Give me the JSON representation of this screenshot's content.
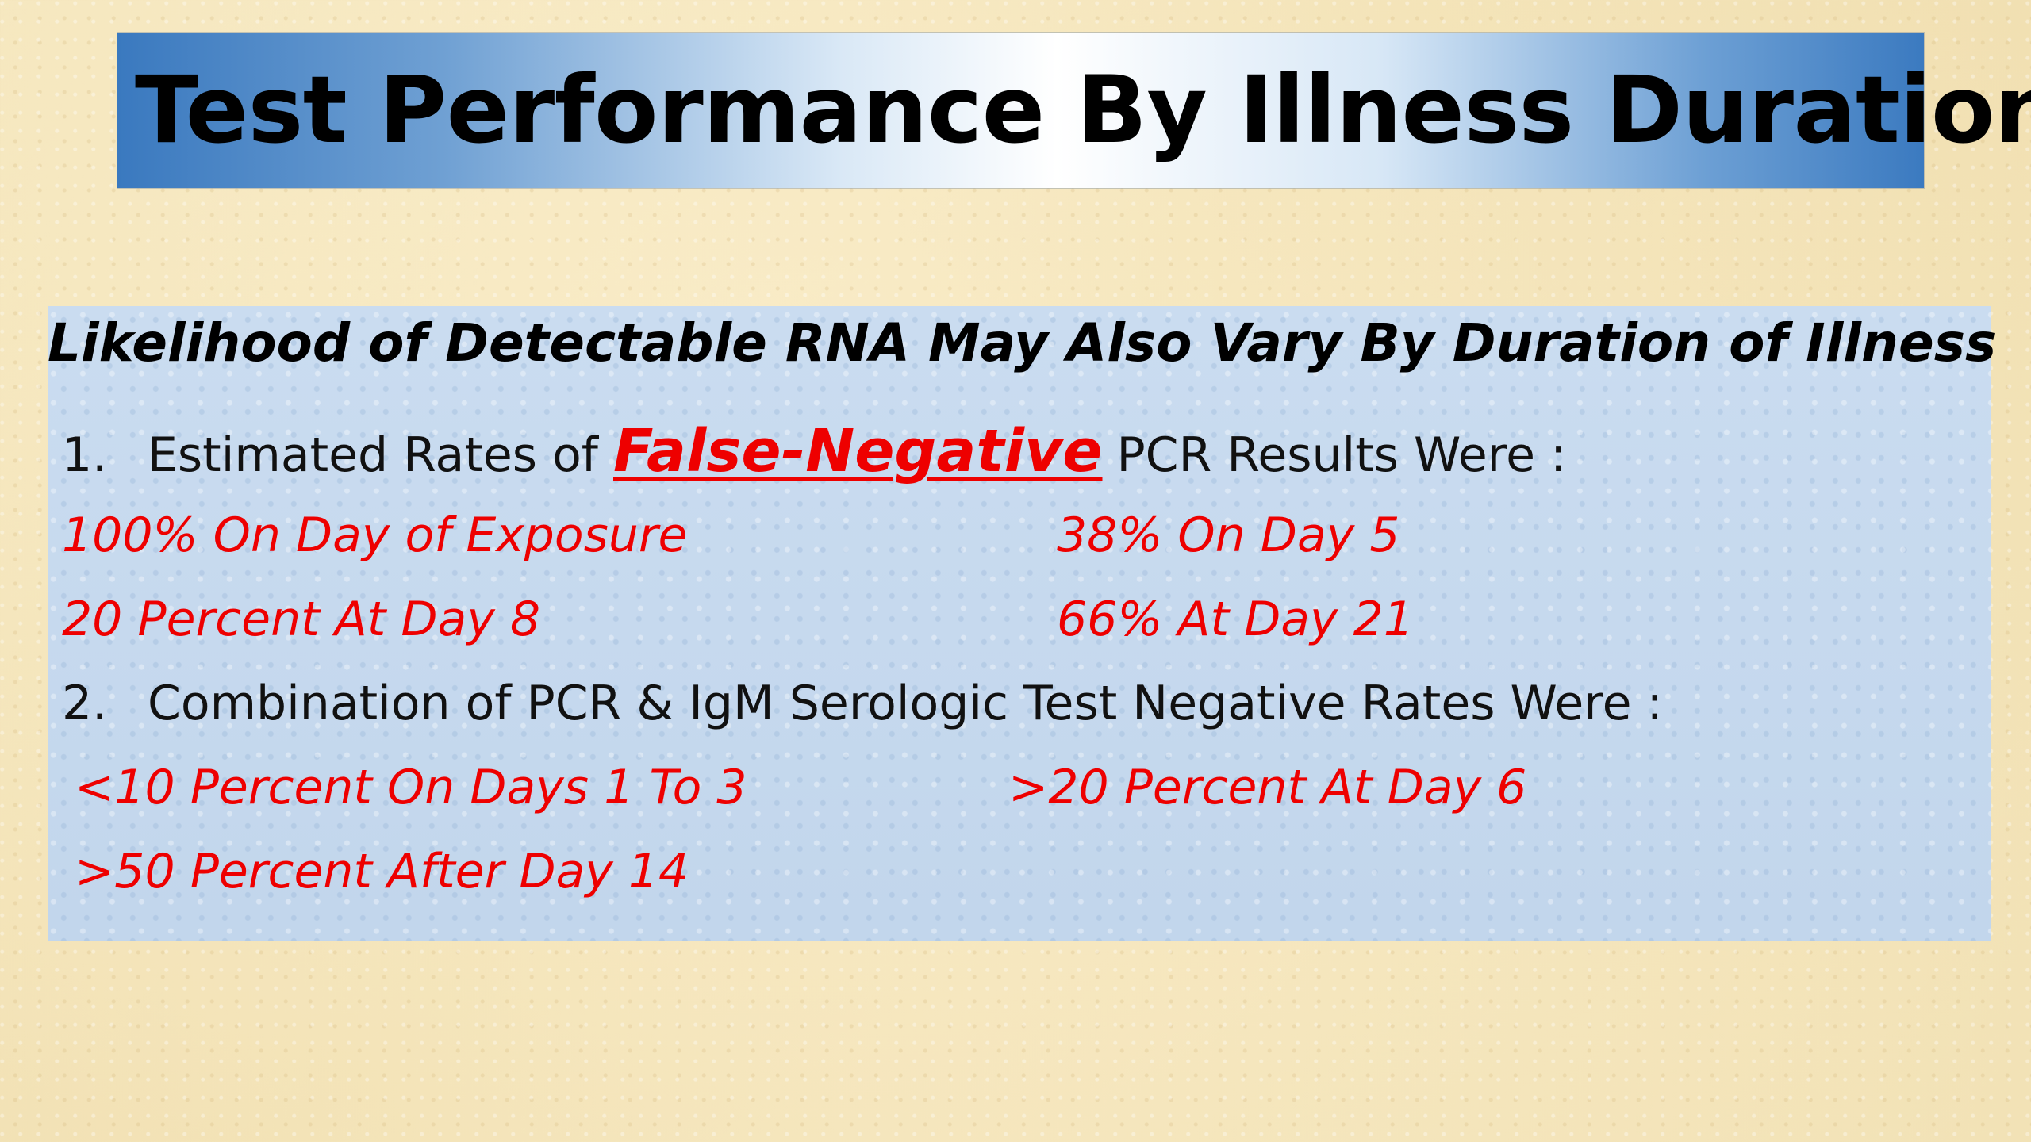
{
  "title": "Test Performance By Illness Duration",
  "subtitle": "Likelihood of Detectable RNA May Also Vary By Duration of Illness",
  "item1": {
    "number": "1.",
    "text_before": "Estimated Rates of",
    "emphasis": "False-Negative",
    "text_after": "PCR Results Were :",
    "rates": {
      "left_1": "100% On Day of Exposure",
      "right_1": "38% On Day 5",
      "left_2": "20 Percent At Day 8",
      "right_2": "66% At Day 21"
    }
  },
  "item2": {
    "number": "2.",
    "text": "Combination of PCR & IgM Serologic Test Negative Rates Were :",
    "rates": {
      "left_1": "<10 Percent On Days 1 To 3",
      "right_1": ">20 Percent At Day 6",
      "left_2": ">50 Percent After Day 14"
    }
  },
  "colors": {
    "accent_red": "#ee0000",
    "banner_blue": "#3a79bf",
    "panel_blue": "#c5d9ef",
    "background": "#f6e8c0"
  }
}
